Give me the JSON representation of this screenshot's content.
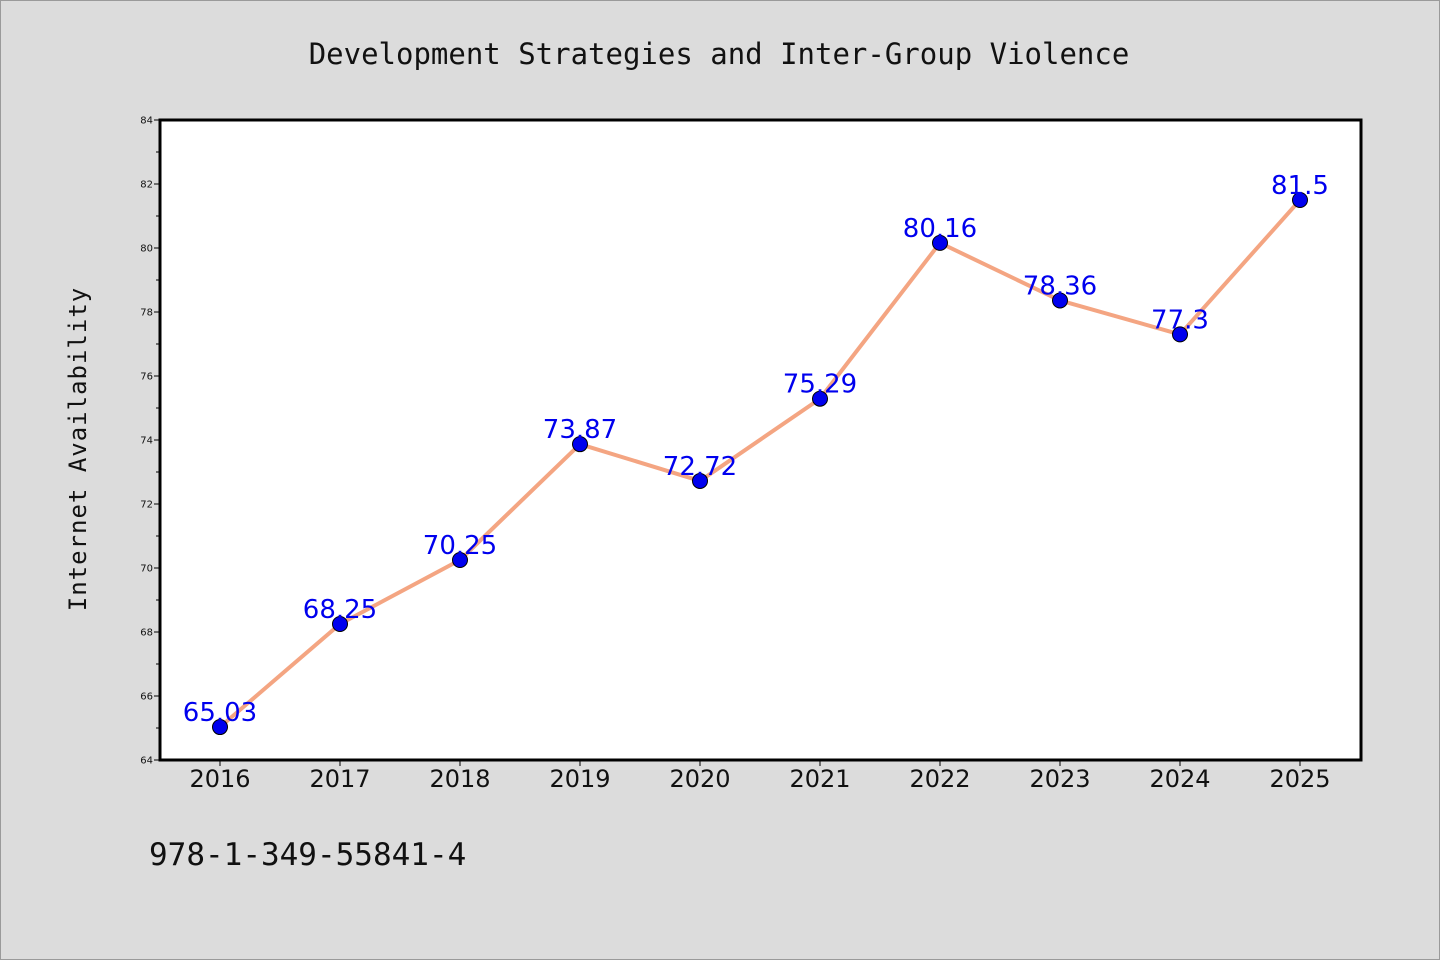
{
  "chart_data": {
    "type": "line",
    "title": "Development Strategies and Inter-Group Violence",
    "xlabel": "",
    "ylabel": "Internet Availability",
    "categories": [
      "2016",
      "2017",
      "2018",
      "2019",
      "2020",
      "2021",
      "2022",
      "2023",
      "2024",
      "2025"
    ],
    "series": [
      {
        "values": [
          65.03,
          68.25,
          70.25,
          73.87,
          72.72,
          75.29,
          80.16,
          78.36,
          77.3,
          81.5
        ],
        "data_labels": [
          "65.03",
          "68.25",
          "70.25",
          "73.87",
          "72.72",
          "75.29",
          "80.16",
          "78.36",
          "77.3",
          "81.5"
        ]
      }
    ],
    "ylim": [
      64,
      84
    ],
    "yticks": [
      64,
      66,
      68,
      70,
      72,
      74,
      76,
      78,
      80,
      82,
      84
    ],
    "grid": false,
    "legend": "none",
    "line_color": "#f4a582",
    "marker_color": "#0000ee",
    "label_color": "#0000ee"
  },
  "footer": {
    "code": "978-1-349-55841-4"
  },
  "colors": {
    "background": "#dcdcdc",
    "plot_area": "#ffffff"
  }
}
